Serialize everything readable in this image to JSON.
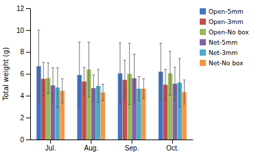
{
  "chart_data": {
    "type": "bar",
    "categories": [
      "Jul.",
      "Aug.",
      "Sep.",
      "Oct."
    ],
    "series": [
      {
        "name": "Open-5mm",
        "color": "#4472C4",
        "values": [
          6.7,
          5.9,
          6.05,
          6.2
        ],
        "errors": [
          3.3,
          3.0,
          2.8,
          2.6
        ]
      },
      {
        "name": "Open-3mm",
        "color": "#C0504D",
        "values": [
          5.55,
          5.3,
          5.45,
          5.0
        ],
        "errors": [
          1.5,
          1.3,
          1.8,
          1.4
        ]
      },
      {
        "name": "Open-No box",
        "color": "#9BBB59",
        "values": [
          5.6,
          6.4,
          6.0,
          6.05
        ],
        "errors": [
          1.4,
          2.5,
          2.8,
          2.0
        ]
      },
      {
        "name": "Net-5mm",
        "color": "#8064A2",
        "values": [
          4.95,
          4.7,
          5.6,
          5.1
        ],
        "errors": [
          1.6,
          1.2,
          2.2,
          1.5
        ]
      },
      {
        "name": "Net-3mm",
        "color": "#4BACC6",
        "values": [
          4.75,
          4.9,
          4.65,
          5.2
        ],
        "errors": [
          1.8,
          1.5,
          1.1,
          2.2
        ]
      },
      {
        "name": "Net-No box",
        "color": "#F79646",
        "values": [
          4.45,
          4.3,
          4.65,
          4.35
        ],
        "errors": [
          1.1,
          0.75,
          0.9,
          1.1
        ]
      }
    ],
    "ylabel": "Total weight (g)",
    "ylim": [
      0,
      12
    ],
    "yticks": [
      0,
      2,
      4,
      6,
      8,
      10,
      12
    ],
    "grid": false,
    "legend": "right"
  }
}
